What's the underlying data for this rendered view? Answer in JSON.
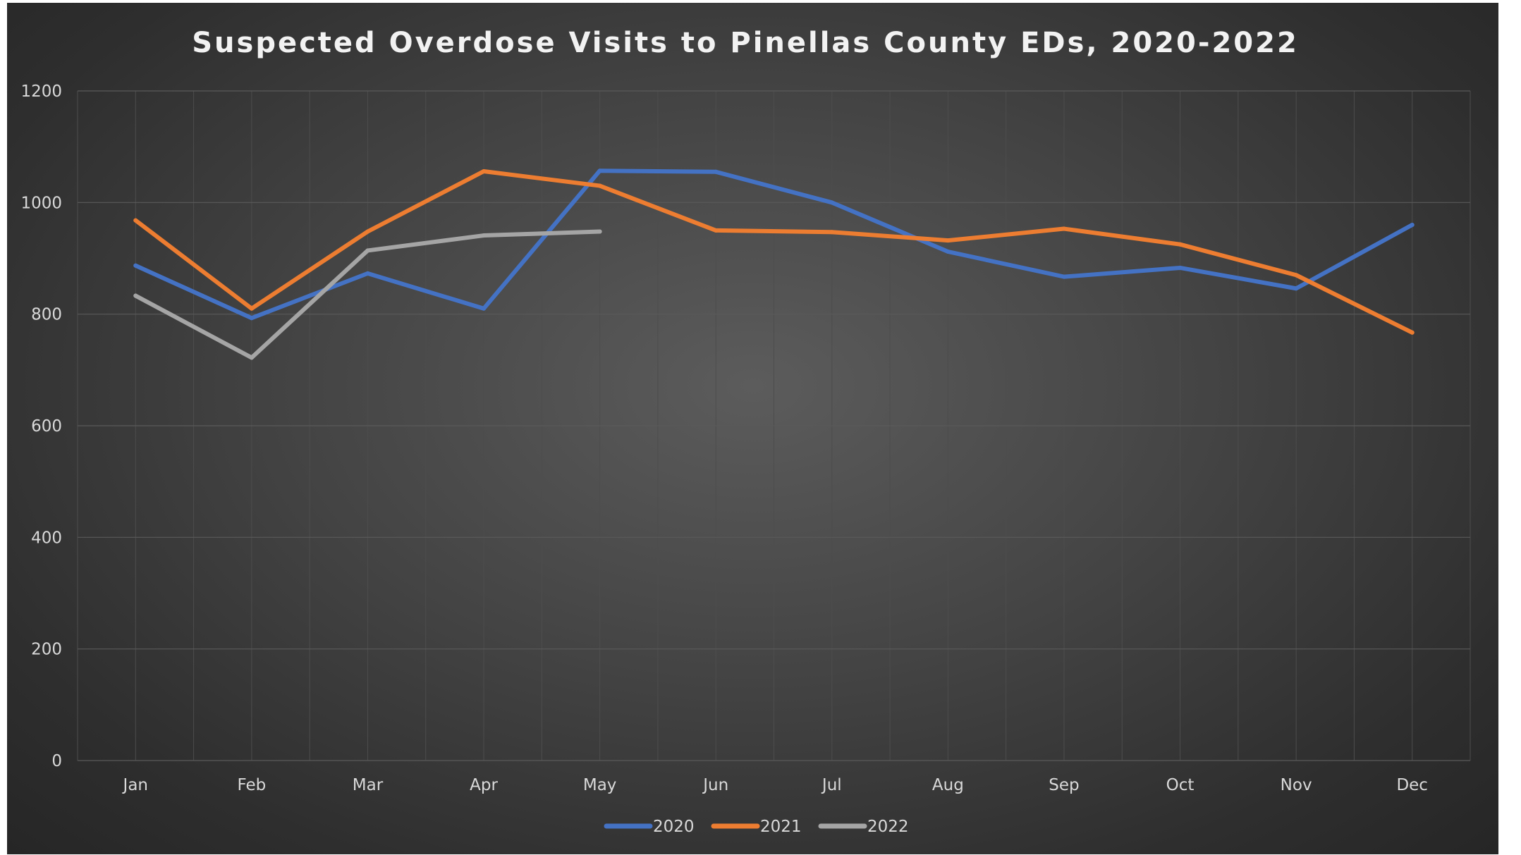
{
  "chart_data": {
    "type": "line",
    "title": "Suspected Overdose Visits to Pinellas County EDs, 2020-2022",
    "xlabel": "",
    "ylabel": "",
    "categories": [
      "Jan",
      "Feb",
      "Mar",
      "Apr",
      "May",
      "Jun",
      "Jul",
      "Aug",
      "Sep",
      "Oct",
      "Nov",
      "Dec"
    ],
    "ylim": [
      0,
      1200
    ],
    "yticks": [
      "0",
      "200",
      "400",
      "600",
      "800",
      "1000",
      "1200"
    ],
    "grid": true,
    "legend_position": "bottom",
    "series": [
      {
        "name": "2020",
        "color": "#4472c4",
        "values": [
          887,
          793,
          873,
          810,
          1057,
          1055,
          1000,
          912,
          867,
          883,
          846,
          960
        ]
      },
      {
        "name": "2021",
        "color": "#ed7d31",
        "values": [
          968,
          810,
          948,
          1056,
          1030,
          950,
          947,
          932,
          953,
          925,
          870,
          767
        ]
      },
      {
        "name": "2022",
        "color": "#a5a5a5",
        "values": [
          833,
          722,
          914,
          941,
          948,
          null,
          null,
          null,
          null,
          null,
          null,
          null
        ]
      }
    ]
  }
}
